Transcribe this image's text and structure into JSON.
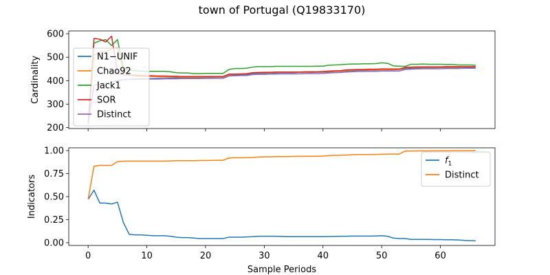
{
  "title": "town of Portugal (Q19833170)",
  "colors": {
    "blue": "#1f77b4",
    "orange": "#ff7f0e",
    "green": "#2ca02c",
    "red": "#d62728",
    "purple": "#9467bd"
  },
  "chart_data": [
    {
      "type": "line",
      "ylabel": "Cardinality",
      "xlabel": "",
      "xlim": [
        -3.3,
        69.3
      ],
      "ylim": [
        196,
        612
      ],
      "xticks": [
        0,
        10,
        20,
        30,
        40,
        50,
        60
      ],
      "yticks": [
        200,
        300,
        400,
        500,
        600
      ],
      "legend_position": "left",
      "x": [
        0,
        1,
        2,
        3,
        4,
        5,
        6,
        7,
        8,
        9,
        10,
        11,
        12,
        13,
        14,
        15,
        16,
        17,
        18,
        19,
        20,
        21,
        22,
        23,
        24,
        25,
        26,
        27,
        28,
        29,
        30,
        31,
        32,
        33,
        34,
        35,
        36,
        37,
        38,
        39,
        40,
        41,
        42,
        43,
        44,
        45,
        46,
        47,
        48,
        49,
        50,
        51,
        52,
        53,
        54,
        55,
        56,
        57,
        58,
        59,
        60,
        61,
        62,
        63,
        64,
        65,
        66
      ],
      "series": [
        {
          "name": "N1−UNIF",
          "color_key": "blue",
          "values": [
            215,
            380,
            385,
            390,
            395,
            400,
            405,
            405,
            407,
            408,
            408,
            409,
            410,
            410,
            411,
            412,
            412,
            413,
            413,
            413,
            414,
            414,
            415,
            415,
            424,
            425,
            425,
            426,
            430,
            431,
            431,
            432,
            433,
            434,
            434,
            434,
            435,
            435,
            435,
            436,
            436,
            437,
            439,
            440,
            441,
            443,
            444,
            444,
            445,
            445,
            446,
            446,
            446,
            447,
            452,
            453,
            454,
            455,
            455,
            455,
            456,
            456,
            456,
            456,
            457,
            457,
            457
          ]
        },
        {
          "name": "Chao92",
          "color_key": "orange",
          "values": [
            215,
            510,
            520,
            525,
            535,
            540,
            440,
            425,
            420,
            418,
            418,
            418,
            417,
            416,
            416,
            416,
            415,
            415,
            415,
            415,
            416,
            416,
            416,
            416,
            426,
            427,
            428,
            429,
            433,
            434,
            434,
            434,
            435,
            436,
            436,
            436,
            436,
            436,
            437,
            437,
            437,
            439,
            440,
            441,
            443,
            445,
            446,
            446,
            446,
            447,
            447,
            447,
            447,
            448,
            455,
            456,
            457,
            457,
            457,
            457,
            457,
            458,
            458,
            458,
            459,
            459,
            459
          ]
        },
        {
          "name": "Jack1",
          "color_key": "green",
          "values": [
            215,
            560,
            570,
            575,
            550,
            575,
            455,
            445,
            442,
            441,
            440,
            440,
            440,
            440,
            438,
            434,
            433,
            433,
            430,
            430,
            431,
            431,
            431,
            431,
            448,
            452,
            452,
            453,
            458,
            460,
            460,
            460,
            461,
            461,
            461,
            461,
            461,
            461,
            461,
            462,
            462,
            466,
            467,
            468,
            470,
            471,
            471,
            472,
            472,
            473,
            476,
            474,
            463,
            462,
            461,
            470,
            470,
            471,
            470,
            470,
            470,
            469,
            469,
            467,
            467,
            467,
            466
          ]
        },
        {
          "name": "SOR",
          "color_key": "red",
          "values": [
            215,
            580,
            577,
            565,
            590,
            430,
            425,
            425,
            423,
            422,
            422,
            421,
            420,
            420,
            419,
            419,
            418,
            418,
            418,
            418,
            418,
            418,
            418,
            418,
            428,
            428,
            429,
            430,
            434,
            435,
            436,
            436,
            437,
            437,
            437,
            437,
            437,
            438,
            438,
            438,
            439,
            441,
            442,
            443,
            446,
            447,
            448,
            448,
            449,
            449,
            450,
            450,
            450,
            450,
            457,
            458,
            459,
            459,
            459,
            459,
            459,
            460,
            460,
            460,
            460,
            460,
            460
          ]
        },
        {
          "name": "Distinct",
          "color_key": "purple",
          "values": [
            215,
            380,
            385,
            390,
            395,
            400,
            404,
            405,
            406,
            406,
            407,
            407,
            407,
            408,
            408,
            408,
            409,
            409,
            409,
            409,
            410,
            410,
            410,
            410,
            420,
            421,
            422,
            422,
            426,
            427,
            427,
            428,
            428,
            429,
            429,
            429,
            429,
            430,
            430,
            430,
            431,
            433,
            434,
            435,
            437,
            438,
            439,
            439,
            440,
            440,
            441,
            441,
            441,
            441,
            448,
            449,
            450,
            451,
            451,
            451,
            451,
            452,
            452,
            452,
            453,
            453,
            453
          ]
        }
      ]
    },
    {
      "type": "line",
      "ylabel": "Indicators",
      "xlabel": "Sample Periods",
      "xlim": [
        -3.3,
        69.3
      ],
      "ylim": [
        -0.03,
        1.03
      ],
      "xticks": [
        0,
        10,
        20,
        30,
        40,
        50,
        60
      ],
      "yticks": [
        0.0,
        0.25,
        0.5,
        0.75,
        1.0
      ],
      "ytick_labels": [
        "0.00",
        "0.25",
        "0.50",
        "0.75",
        "1.00"
      ],
      "legend_position": "right",
      "x": [
        0,
        1,
        2,
        3,
        4,
        5,
        6,
        7,
        8,
        9,
        10,
        11,
        12,
        13,
        14,
        15,
        16,
        17,
        18,
        19,
        20,
        21,
        22,
        23,
        24,
        25,
        26,
        27,
        28,
        29,
        30,
        31,
        32,
        33,
        34,
        35,
        36,
        37,
        38,
        39,
        40,
        41,
        42,
        43,
        44,
        45,
        46,
        47,
        48,
        49,
        50,
        51,
        52,
        53,
        54,
        55,
        56,
        57,
        58,
        59,
        60,
        61,
        62,
        63,
        64,
        65,
        66
      ],
      "series": [
        {
          "name": "f",
          "name_subscript": "1",
          "color_key": "blue",
          "values": [
            0.47,
            0.57,
            0.43,
            0.43,
            0.42,
            0.44,
            0.22,
            0.09,
            0.085,
            0.085,
            0.08,
            0.075,
            0.075,
            0.075,
            0.07,
            0.06,
            0.055,
            0.055,
            0.05,
            0.045,
            0.045,
            0.045,
            0.045,
            0.045,
            0.06,
            0.06,
            0.06,
            0.062,
            0.065,
            0.07,
            0.07,
            0.07,
            0.07,
            0.068,
            0.065,
            0.065,
            0.065,
            0.065,
            0.065,
            0.065,
            0.065,
            0.067,
            0.068,
            0.07,
            0.07,
            0.072,
            0.072,
            0.072,
            0.072,
            0.073,
            0.075,
            0.07,
            0.05,
            0.045,
            0.045,
            0.035,
            0.035,
            0.035,
            0.035,
            0.033,
            0.033,
            0.032,
            0.032,
            0.03,
            0.025,
            0.022,
            0.02
          ]
        },
        {
          "name": "Distinct",
          "color_key": "orange",
          "values": [
            0.47,
            0.83,
            0.84,
            0.84,
            0.84,
            0.88,
            0.885,
            0.885,
            0.885,
            0.885,
            0.885,
            0.885,
            0.885,
            0.885,
            0.887,
            0.89,
            0.89,
            0.89,
            0.89,
            0.892,
            0.893,
            0.893,
            0.895,
            0.895,
            0.92,
            0.922,
            0.922,
            0.923,
            0.925,
            0.93,
            0.932,
            0.932,
            0.935,
            0.935,
            0.935,
            0.937,
            0.938,
            0.938,
            0.938,
            0.938,
            0.94,
            0.945,
            0.948,
            0.95,
            0.952,
            0.955,
            0.957,
            0.957,
            0.957,
            0.958,
            0.96,
            0.962,
            0.962,
            0.962,
            0.995,
            0.995,
            0.996,
            0.996,
            0.996,
            0.997,
            0.997,
            0.997,
            0.998,
            0.998,
            0.998,
            0.999,
            0.999
          ]
        }
      ]
    }
  ]
}
